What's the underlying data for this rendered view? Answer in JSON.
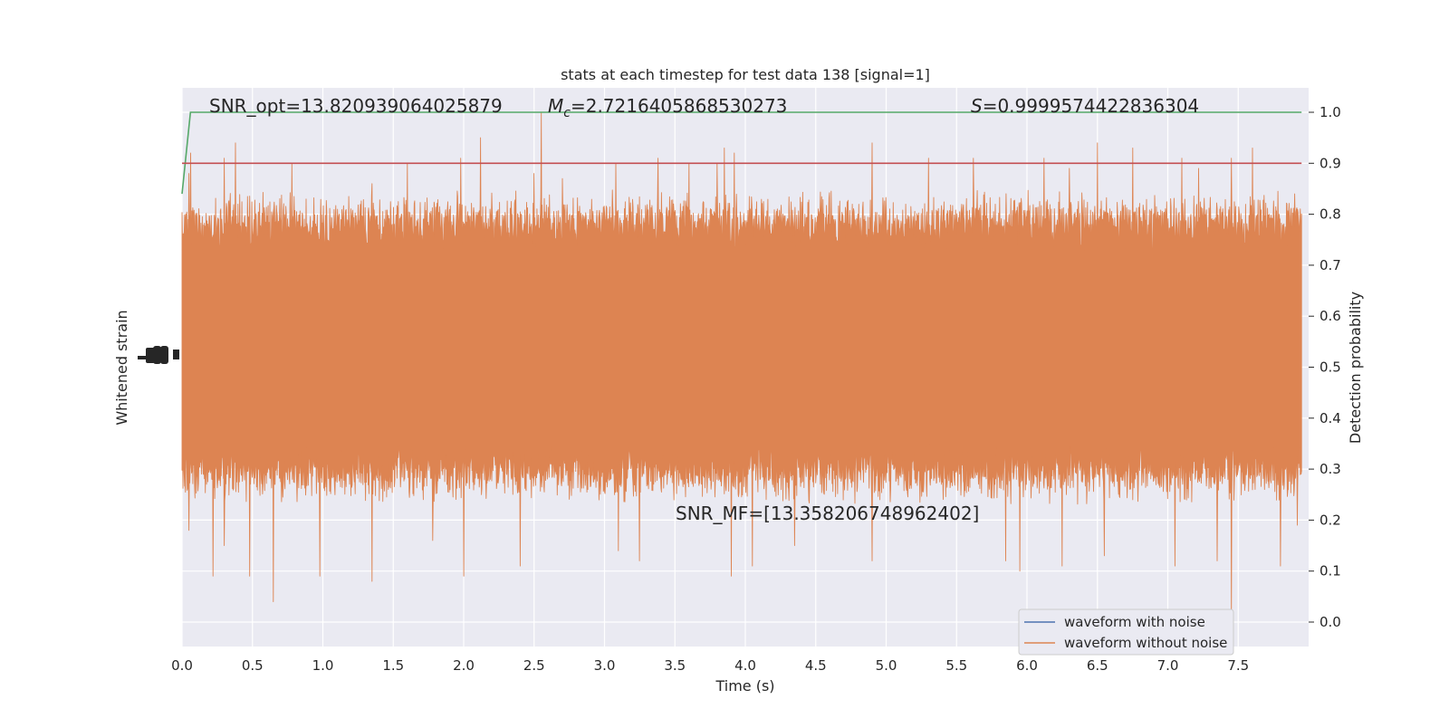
{
  "chart_data": {
    "type": "line",
    "title": "stats at each timestep for test data 138 [signal=1]",
    "xlabel": "Time (s)",
    "ylabel_left": "Whitened strain",
    "ylabel_right": "Detection probability",
    "xlim": [
      0.0,
      8.0
    ],
    "ylim_right": [
      -0.05,
      1.05
    ],
    "x_ticks": [
      "0.0",
      "0.5",
      "1.0",
      "1.5",
      "2.0",
      "2.5",
      "3.0",
      "3.5",
      "4.0",
      "4.5",
      "5.0",
      "5.5",
      "6.0",
      "6.5",
      "7.0",
      "7.5"
    ],
    "y_right_ticks": [
      "0.0",
      "0.1",
      "0.2",
      "0.3",
      "0.4",
      "0.5",
      "0.6",
      "0.7",
      "0.8",
      "0.9",
      "1.0"
    ],
    "grid": true,
    "legend_placement": "lower-right",
    "annotations": {
      "snr_opt": "SNR_opt=13.820939064025879",
      "mc_symbol": "M",
      "mc_sub": "c",
      "mc_value": "=2.7216405868530273",
      "s_symbol": "S",
      "s_value": "=0.9999574422836304",
      "snr_mf": "SNR_MF=[13.358206748962402]"
    },
    "series": [
      {
        "name": "waveform with noise",
        "color": "#4c72b0"
      },
      {
        "name": "waveform without noise",
        "color": "#dd8452"
      },
      {
        "color": "#55a868",
        "x": [
          0.0,
          0.06,
          0.12,
          0.5,
          1.0,
          2.0,
          3.0,
          4.0,
          5.0,
          6.0,
          7.0,
          7.95
        ],
        "y": [
          0.84,
          1.0,
          1.0,
          1.0,
          1.0,
          1.0,
          1.0,
          1.0,
          1.0,
          1.0,
          1.0,
          1.0
        ]
      },
      {
        "color": "#c44e52",
        "x": [
          0.0,
          7.95
        ],
        "y": [
          0.9,
          0.9
        ]
      }
    ],
    "orange_envelope": {
      "upper_typical": [
        0.72,
        0.8
      ],
      "lower_typical": [
        0.28,
        0.35
      ],
      "upper_peaks": [
        [
          0.05,
          0.88
        ],
        [
          0.06,
          0.92
        ],
        [
          0.3,
          0.91
        ],
        [
          0.38,
          0.94
        ],
        [
          0.78,
          0.9
        ],
        [
          1.35,
          0.86
        ],
        [
          1.6,
          0.9
        ],
        [
          1.98,
          0.91
        ],
        [
          2.12,
          0.95
        ],
        [
          2.5,
          0.88
        ],
        [
          2.55,
          1.0
        ],
        [
          2.7,
          0.87
        ],
        [
          3.08,
          0.9
        ],
        [
          3.38,
          0.91
        ],
        [
          3.6,
          0.9
        ],
        [
          3.8,
          0.9
        ],
        [
          3.85,
          0.93
        ],
        [
          3.92,
          0.92
        ],
        [
          4.9,
          0.94
        ],
        [
          5.3,
          0.91
        ],
        [
          5.62,
          0.91
        ],
        [
          6.12,
          0.91
        ],
        [
          6.3,
          0.89
        ],
        [
          6.5,
          0.94
        ],
        [
          6.75,
          0.93
        ],
        [
          7.1,
          0.91
        ],
        [
          7.22,
          0.89
        ],
        [
          7.45,
          0.91
        ],
        [
          7.6,
          0.93
        ],
        [
          7.9,
          0.84
        ]
      ],
      "lower_peaks": [
        [
          0.05,
          0.18
        ],
        [
          0.22,
          0.09
        ],
        [
          0.3,
          0.15
        ],
        [
          0.48,
          0.09
        ],
        [
          0.65,
          0.04
        ],
        [
          0.98,
          0.09
        ],
        [
          1.35,
          0.08
        ],
        [
          1.78,
          0.16
        ],
        [
          2.0,
          0.09
        ],
        [
          2.4,
          0.11
        ],
        [
          3.1,
          0.14
        ],
        [
          3.25,
          0.12
        ],
        [
          3.9,
          0.09
        ],
        [
          4.05,
          0.11
        ],
        [
          4.35,
          0.15
        ],
        [
          4.9,
          0.12
        ],
        [
          5.85,
          0.12
        ],
        [
          5.95,
          0.1
        ],
        [
          6.25,
          0.11
        ],
        [
          6.55,
          0.13
        ],
        [
          7.05,
          0.11
        ],
        [
          7.35,
          0.12
        ],
        [
          7.45,
          0.0
        ],
        [
          7.8,
          0.11
        ],
        [
          7.92,
          0.19
        ]
      ]
    }
  }
}
